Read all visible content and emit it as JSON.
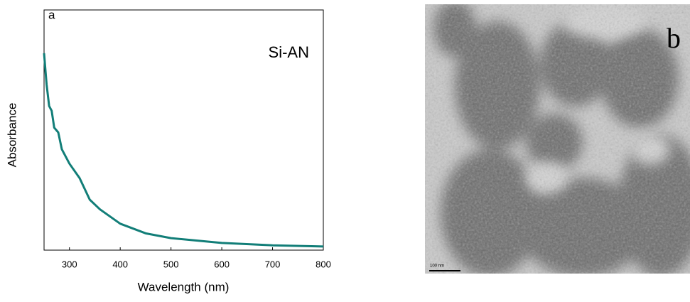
{
  "chart_data": {
    "type": "line",
    "panel_label": "a",
    "annotation": "Si-AN",
    "x_label": "Wavelength (nm)",
    "y_label": "Absorbance",
    "x": [
      250,
      255,
      260,
      265,
      270,
      278,
      285,
      300,
      320,
      340,
      360,
      400,
      450,
      500,
      600,
      700,
      800
    ],
    "series": [
      {
        "name": "Si-AN",
        "color": "#127e78",
        "values": [
          0.82,
          0.69,
          0.6,
          0.58,
          0.51,
          0.49,
          0.42,
          0.36,
          0.3,
          0.21,
          0.17,
          0.11,
          0.07,
          0.05,
          0.03,
          0.02,
          0.015
        ]
      }
    ],
    "xlim": [
      250,
      800
    ],
    "xticks": [
      300,
      400,
      500,
      600,
      700,
      800
    ],
    "ylim": [
      0,
      1
    ]
  },
  "image": {
    "panel_label": "b",
    "scale_bar": "100 nm"
  }
}
